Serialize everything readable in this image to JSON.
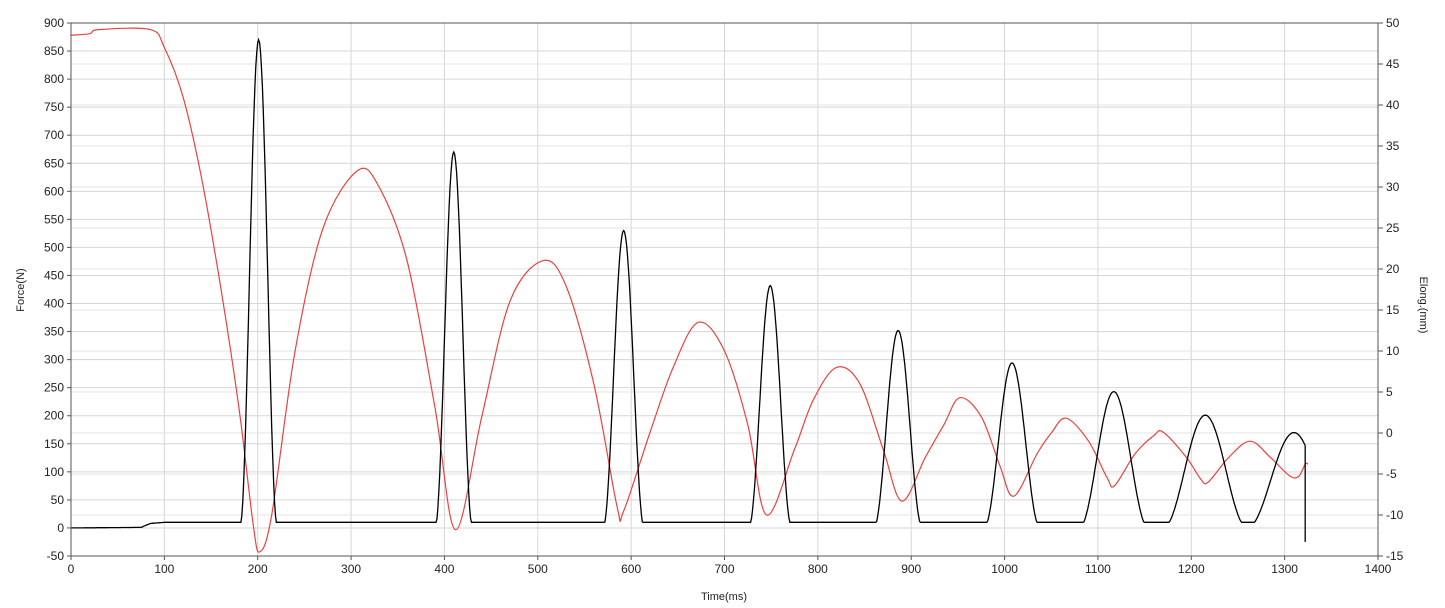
{
  "chart_data": {
    "type": "line",
    "xlabel": "Time(ms)",
    "ylabel": "Force(N)",
    "y2label": "Elong.(mm)",
    "xlim": [
      0,
      1400
    ],
    "ylim": [
      -50,
      900
    ],
    "y2lim": [
      -15,
      50
    ],
    "x_ticks": [
      0,
      100,
      200,
      300,
      400,
      500,
      600,
      700,
      800,
      900,
      1000,
      1100,
      1200,
      1300,
      1400
    ],
    "y_ticks": [
      -50,
      0,
      50,
      100,
      150,
      200,
      250,
      300,
      350,
      400,
      450,
      500,
      550,
      600,
      650,
      700,
      750,
      800,
      850,
      900
    ],
    "y2_ticks": [
      -15,
      -10,
      -5,
      0,
      5,
      10,
      15,
      20,
      25,
      30,
      35,
      40,
      45,
      50
    ],
    "grid": true,
    "series": [
      {
        "axis": "left",
        "color": "#000000",
        "baseline": [
          [
            0,
            0
          ],
          [
            75,
            1
          ],
          [
            85,
            8
          ],
          [
            100,
            10
          ]
        ],
        "peaks": [
          {
            "t": 201,
            "v": 870,
            "halfwidth": 20
          },
          {
            "t": 410,
            "v": 670,
            "halfwidth": 20
          },
          {
            "t": 592,
            "v": 530,
            "halfwidth": 22
          },
          {
            "t": 749,
            "v": 432,
            "halfwidth": 23
          },
          {
            "t": 886,
            "v": 352,
            "halfwidth": 26
          },
          {
            "t": 1008,
            "v": 294,
            "halfwidth": 30
          },
          {
            "t": 1117,
            "v": 243,
            "halfwidth": 37
          },
          {
            "t": 1215,
            "v": 201,
            "halfwidth": 45
          },
          {
            "t": 1310,
            "v": 170,
            "halfwidth": 50
          }
        ],
        "end_t": 1322
      },
      {
        "axis": "right",
        "color": "#e8433f",
        "points": [
          [
            0,
            48.5
          ],
          [
            20,
            48.7
          ],
          [
            30,
            49.2
          ],
          [
            85,
            49.2
          ],
          [
            100,
            47
          ],
          [
            120,
            41
          ],
          [
            140,
            31
          ],
          [
            160,
            18
          ],
          [
            180,
            3
          ],
          [
            195,
            -11
          ],
          [
            202,
            -14.5
          ],
          [
            215,
            -10
          ],
          [
            240,
            10
          ],
          [
            270,
            25
          ],
          [
            307,
            32
          ],
          [
            330,
            30
          ],
          [
            360,
            21
          ],
          [
            390,
            3
          ],
          [
            412,
            -11.8
          ],
          [
            440,
            2
          ],
          [
            470,
            16
          ],
          [
            505,
            21
          ],
          [
            530,
            18
          ],
          [
            560,
            6
          ],
          [
            585,
            -9
          ],
          [
            592,
            -9.5
          ],
          [
            620,
            0
          ],
          [
            645,
            8
          ],
          [
            672,
            13.5
          ],
          [
            700,
            10
          ],
          [
            725,
            1
          ],
          [
            745,
            -10
          ],
          [
            775,
            -2
          ],
          [
            795,
            4
          ],
          [
            820,
            8
          ],
          [
            845,
            6
          ],
          [
            870,
            -2
          ],
          [
            890,
            -8.3
          ],
          [
            915,
            -3
          ],
          [
            935,
            1
          ],
          [
            952,
            4.3
          ],
          [
            975,
            2
          ],
          [
            995,
            -4
          ],
          [
            1010,
            -7.7
          ],
          [
            1035,
            -2.5
          ],
          [
            1050,
            0
          ],
          [
            1066,
            1.8
          ],
          [
            1090,
            -1
          ],
          [
            1110,
            -5.5
          ],
          [
            1118,
            -6.4
          ],
          [
            1140,
            -2.5
          ],
          [
            1160,
            -0.3
          ],
          [
            1170,
            0.1
          ],
          [
            1195,
            -3
          ],
          [
            1210,
            -5.6
          ],
          [
            1218,
            -6
          ],
          [
            1240,
            -3
          ],
          [
            1263,
            -1
          ],
          [
            1285,
            -3
          ],
          [
            1305,
            -5.2
          ],
          [
            1315,
            -5.3
          ],
          [
            1322,
            -3.8
          ],
          [
            1325,
            -3.8
          ]
        ]
      }
    ]
  }
}
